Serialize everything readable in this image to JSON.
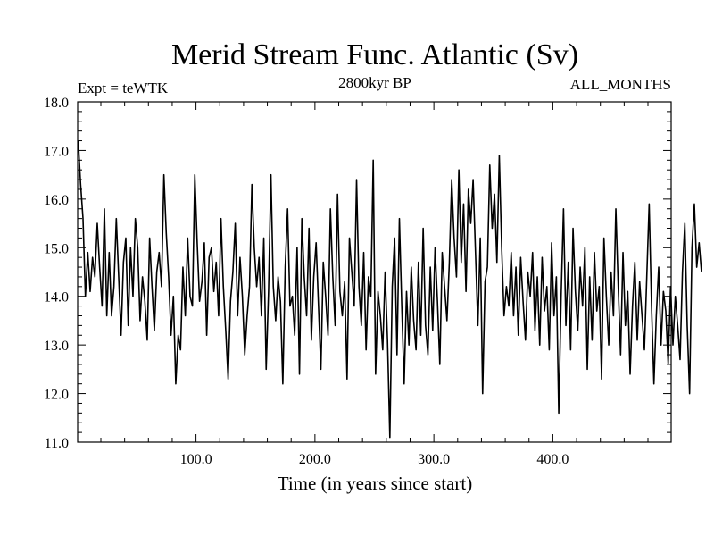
{
  "chart_data": {
    "type": "line",
    "title": "Merid Stream Func. Atlantic (Sv)",
    "subtitle_left": "Expt = teWTK",
    "subtitle_center": "2800kyr BP",
    "subtitle_right": "ALL_MONTHS",
    "xlabel": "Time (in years since start)",
    "ylabel": "",
    "xlim": [
      0.5,
      499.5
    ],
    "ylim": [
      11.0,
      18.0
    ],
    "x_ticks": [
      100,
      200,
      300,
      400
    ],
    "x_tick_labels": [
      "100.0",
      "200.0",
      "300.0",
      "400.0"
    ],
    "y_ticks": [
      11,
      12,
      13,
      14,
      15,
      16,
      17,
      18
    ],
    "y_tick_labels": [
      "11.0",
      "12.0",
      "13.0",
      "14.0",
      "15.0",
      "16.0",
      "17.0",
      "18.0"
    ],
    "grid": false,
    "series": [
      {
        "name": "Merid Stream Func. Atlantic",
        "color": "#000000",
        "x_start": 1,
        "x_step": 2,
        "values": [
          17.2,
          16.3,
          15.6,
          14.0,
          14.9,
          14.1,
          14.8,
          14.4,
          15.5,
          14.6,
          13.8,
          15.8,
          13.6,
          14.9,
          13.6,
          14.2,
          15.6,
          14.4,
          13.2,
          14.7,
          15.2,
          13.4,
          15.0,
          14.0,
          15.6,
          15.0,
          13.5,
          14.4,
          13.9,
          13.1,
          15.2,
          14.2,
          13.3,
          14.5,
          14.9,
          14.2,
          16.5,
          15.3,
          14.4,
          13.2,
          14.0,
          12.2,
          13.2,
          12.9,
          14.6,
          13.6,
          15.2,
          14.0,
          13.8,
          16.5,
          15.1,
          13.9,
          14.3,
          15.1,
          13.2,
          14.8,
          15.0,
          14.1,
          14.7,
          13.6,
          15.6,
          14.2,
          13.3,
          12.3,
          13.9,
          14.5,
          15.5,
          13.6,
          14.8,
          14.0,
          12.8,
          13.6,
          14.2,
          16.3,
          15.0,
          14.2,
          14.8,
          13.6,
          15.2,
          12.5,
          14.1,
          16.5,
          14.2,
          13.5,
          14.4,
          13.9,
          12.2,
          14.6,
          15.8,
          13.8,
          14.0,
          13.2,
          15.0,
          12.4,
          15.6,
          14.4,
          13.6,
          15.4,
          13.1,
          14.4,
          15.1,
          13.8,
          12.5,
          14.7,
          14.0,
          13.2,
          15.8,
          14.4,
          13.4,
          16.1,
          14.1,
          13.6,
          14.3,
          12.3,
          15.2,
          14.5,
          13.8,
          16.4,
          14.2,
          13.4,
          14.9,
          12.9,
          14.4,
          14.0,
          16.8,
          12.4,
          14.1,
          13.6,
          12.9,
          14.5,
          13.1,
          11.1,
          14.2,
          15.2,
          12.8,
          15.6,
          13.8,
          12.2,
          14.1,
          13.0,
          14.6,
          13.5,
          12.9,
          14.7,
          13.2,
          15.4,
          13.4,
          12.8,
          14.6,
          13.3,
          15.0,
          13.9,
          12.6,
          14.9,
          14.2,
          13.5,
          14.7,
          16.4,
          15.2,
          14.4,
          16.6,
          14.7,
          15.9,
          14.1,
          16.2,
          15.5,
          16.4,
          14.9,
          13.4,
          15.2,
          12.0,
          14.3,
          14.6,
          16.7,
          15.4,
          16.1,
          14.7,
          16.9,
          15.0,
          13.6,
          14.2,
          13.8,
          14.9,
          13.6,
          14.6,
          13.2,
          14.8,
          13.9,
          13.1,
          14.5,
          14.0,
          14.9,
          13.3,
          14.4,
          13.0,
          14.8,
          13.7,
          14.2,
          12.9,
          15.1,
          13.6,
          14.4,
          11.6,
          14.0,
          15.8,
          13.4,
          14.7,
          12.9,
          15.4,
          14.1,
          13.3,
          14.6,
          13.8,
          15.0,
          12.5,
          14.4,
          13.1,
          14.9,
          13.7,
          14.2,
          12.3,
          15.2,
          14.0,
          13.0,
          14.5,
          13.6,
          15.8,
          14.2,
          12.8,
          14.9,
          13.4,
          14.1,
          12.4,
          13.8,
          14.7,
          13.1,
          14.3,
          13.6,
          12.9,
          14.4,
          15.9,
          13.8,
          12.2,
          13.6,
          14.6,
          13.0,
          14.1,
          13.7,
          12.6,
          14.2,
          13.0,
          14.0,
          13.4,
          12.7,
          14.5,
          15.5,
          13.4,
          12.0,
          15.0,
          15.9,
          14.6,
          15.1,
          14.5
        ]
      }
    ]
  }
}
